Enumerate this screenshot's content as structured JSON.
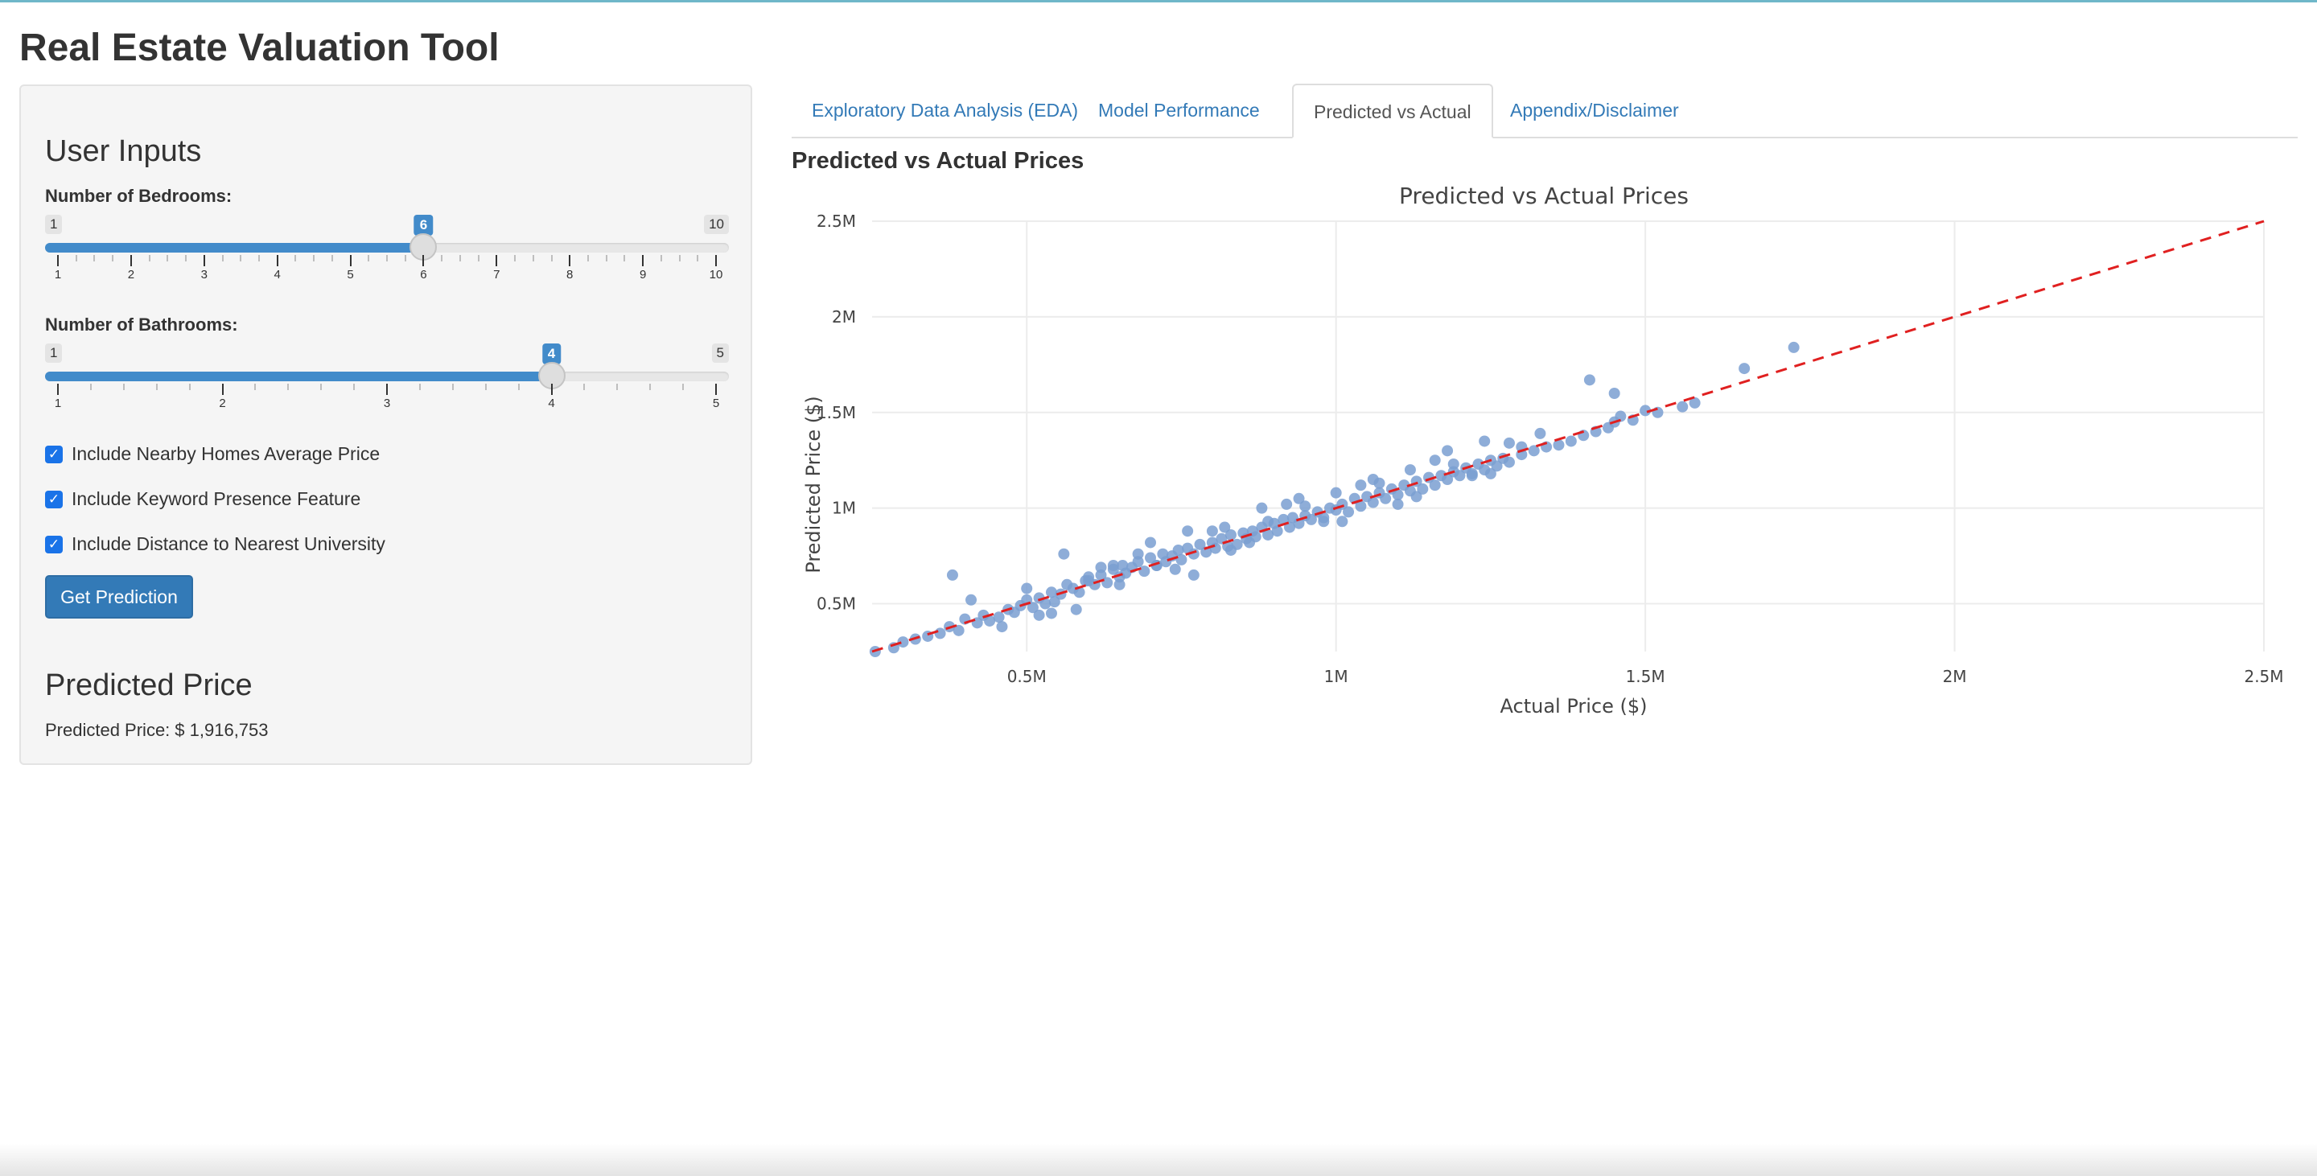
{
  "app": {
    "title": "Real Estate Valuation Tool"
  },
  "sidebar": {
    "inputs_heading": "User Inputs",
    "bedrooms": {
      "label": "Number of Bedrooms:",
      "min": 1,
      "max": 10,
      "value": 6,
      "ticks": [
        "1",
        "2",
        "3",
        "4",
        "5",
        "6",
        "7",
        "8",
        "9",
        "10"
      ]
    },
    "bathrooms": {
      "label": "Number of Bathrooms:",
      "min": 1,
      "max": 5,
      "value": 4,
      "ticks": [
        "1",
        "2",
        "3",
        "4",
        "5"
      ]
    },
    "checkboxes": [
      {
        "label": "Include Nearby Homes Average Price",
        "checked": true
      },
      {
        "label": "Include Keyword Presence Feature",
        "checked": true
      },
      {
        "label": "Include Distance to Nearest University",
        "checked": true
      }
    ],
    "button_label": "Get Prediction",
    "prediction_heading": "Predicted Price",
    "prediction_label": "Predicted Price:",
    "prediction_value": "$ 1,916,753"
  },
  "tabs": [
    {
      "label": "Exploratory Data Analysis (EDA)",
      "active": false
    },
    {
      "label": "Model Performance",
      "active": false
    },
    {
      "label": "Predicted vs Actual",
      "active": true
    },
    {
      "label": "Appendix/Disclaimer",
      "active": false
    }
  ],
  "main": {
    "section_title": "Predicted vs Actual Prices"
  },
  "colors": {
    "accent": "#337ab7",
    "slider": "#428bca",
    "points": "#7a9fd1",
    "reference_line": "#e02020"
  },
  "chart_data": {
    "type": "scatter",
    "title": "Predicted vs Actual Prices",
    "xlabel": "Actual Price ($)",
    "ylabel": "Predicted Price ($)",
    "xlim": [
      250000,
      2500000
    ],
    "ylim": [
      250000,
      2500000
    ],
    "xticks": [
      {
        "v": 500000,
        "label": "0.5M"
      },
      {
        "v": 1000000,
        "label": "1M"
      },
      {
        "v": 1500000,
        "label": "1.5M"
      },
      {
        "v": 2000000,
        "label": "2M"
      },
      {
        "v": 2500000,
        "label": "2.5M"
      }
    ],
    "yticks": [
      {
        "v": 500000,
        "label": "0.5M"
      },
      {
        "v": 1000000,
        "label": "1M"
      },
      {
        "v": 1500000,
        "label": "1.5M"
      },
      {
        "v": 2000000,
        "label": "2M"
      },
      {
        "v": 2500000,
        "label": "2.5M"
      }
    ],
    "grid": true,
    "reference_line": {
      "style": "dashed",
      "from": [
        250000,
        250000
      ],
      "to": [
        2500000,
        2500000
      ]
    },
    "series": [
      {
        "x": [
          255000,
          285000,
          300000,
          320000,
          340000,
          360000,
          375000,
          390000,
          400000,
          420000,
          430000,
          440000,
          455000,
          470000,
          480000,
          490000,
          500000,
          510000,
          520000,
          530000,
          540000,
          545000,
          555000,
          565000,
          575000,
          585000,
          595000,
          600000,
          610000,
          620000,
          630000,
          640000,
          650000,
          655000,
          660000,
          670000,
          680000,
          690000,
          700000,
          710000,
          720000,
          725000,
          735000,
          745000,
          750000,
          760000,
          770000,
          780000,
          790000,
          800000,
          805000,
          815000,
          825000,
          830000,
          840000,
          850000,
          855000,
          865000,
          870000,
          880000,
          890000,
          900000,
          905000,
          915000,
          925000,
          930000,
          940000,
          950000,
          960000,
          970000,
          980000,
          990000,
          1000000,
          1010000,
          1020000,
          1030000,
          1040000,
          1050000,
          1060000,
          1070000,
          1080000,
          1090000,
          1100000,
          1110000,
          1120000,
          1130000,
          1140000,
          1150000,
          1160000,
          1170000,
          1180000,
          1190000,
          1200000,
          1210000,
          1220000,
          1230000,
          1240000,
          1250000,
          1260000,
          1270000,
          1280000,
          1300000,
          1320000,
          1340000,
          1360000,
          1380000,
          1400000,
          1420000,
          1440000,
          1450000,
          1460000,
          1480000,
          1500000,
          1520000,
          1560000,
          1580000,
          1660000,
          1740000,
          380000,
          410000,
          460000,
          500000,
          540000,
          560000,
          600000,
          640000,
          700000,
          760000,
          820000,
          880000,
          940000,
          1000000,
          1060000,
          1120000,
          1180000,
          1240000,
          1300000,
          1410000,
          1450000,
          520000,
          580000,
          620000,
          680000,
          740000,
          800000,
          860000,
          920000,
          980000,
          1040000,
          1100000,
          1160000,
          1220000,
          1280000,
          650000,
          710000,
          770000,
          830000,
          890000,
          950000,
          1010000,
          1070000,
          1130000,
          1190000,
          1250000,
          1330000
        ],
        "y": [
          250000,
          270000,
          300000,
          315000,
          330000,
          345000,
          380000,
          360000,
          420000,
          400000,
          440000,
          410000,
          430000,
          470000,
          455000,
          490000,
          520000,
          480000,
          530000,
          500000,
          560000,
          510000,
          550000,
          600000,
          580000,
          560000,
          620000,
          640000,
          600000,
          650000,
          610000,
          680000,
          640000,
          700000,
          660000,
          690000,
          720000,
          670000,
          740000,
          700000,
          760000,
          720000,
          750000,
          780000,
          730000,
          790000,
          760000,
          810000,
          770000,
          820000,
          790000,
          840000,
          800000,
          860000,
          810000,
          870000,
          840000,
          880000,
          850000,
          900000,
          860000,
          920000,
          880000,
          940000,
          900000,
          950000,
          920000,
          960000,
          940000,
          980000,
          950000,
          1000000,
          990000,
          1020000,
          980000,
          1050000,
          1010000,
          1060000,
          1030000,
          1080000,
          1050000,
          1100000,
          1070000,
          1120000,
          1090000,
          1140000,
          1100000,
          1160000,
          1120000,
          1170000,
          1150000,
          1190000,
          1170000,
          1210000,
          1180000,
          1230000,
          1200000,
          1250000,
          1220000,
          1260000,
          1240000,
          1280000,
          1300000,
          1320000,
          1330000,
          1350000,
          1380000,
          1400000,
          1420000,
          1450000,
          1480000,
          1460000,
          1510000,
          1500000,
          1530000,
          1550000,
          1730000,
          1840000,
          650000,
          520000,
          380000,
          580000,
          450000,
          760000,
          620000,
          700000,
          820000,
          880000,
          900000,
          1000000,
          1050000,
          1080000,
          1150000,
          1200000,
          1300000,
          1350000,
          1320000,
          1670000,
          1600000,
          440000,
          470000,
          690000,
          760000,
          680000,
          880000,
          820000,
          1020000,
          930000,
          1120000,
          1020000,
          1250000,
          1170000,
          1340000,
          600000,
          700000,
          650000,
          780000,
          930000,
          1010000,
          930000,
          1130000,
          1060000,
          1230000,
          1180000,
          1390000
        ]
      }
    ]
  }
}
